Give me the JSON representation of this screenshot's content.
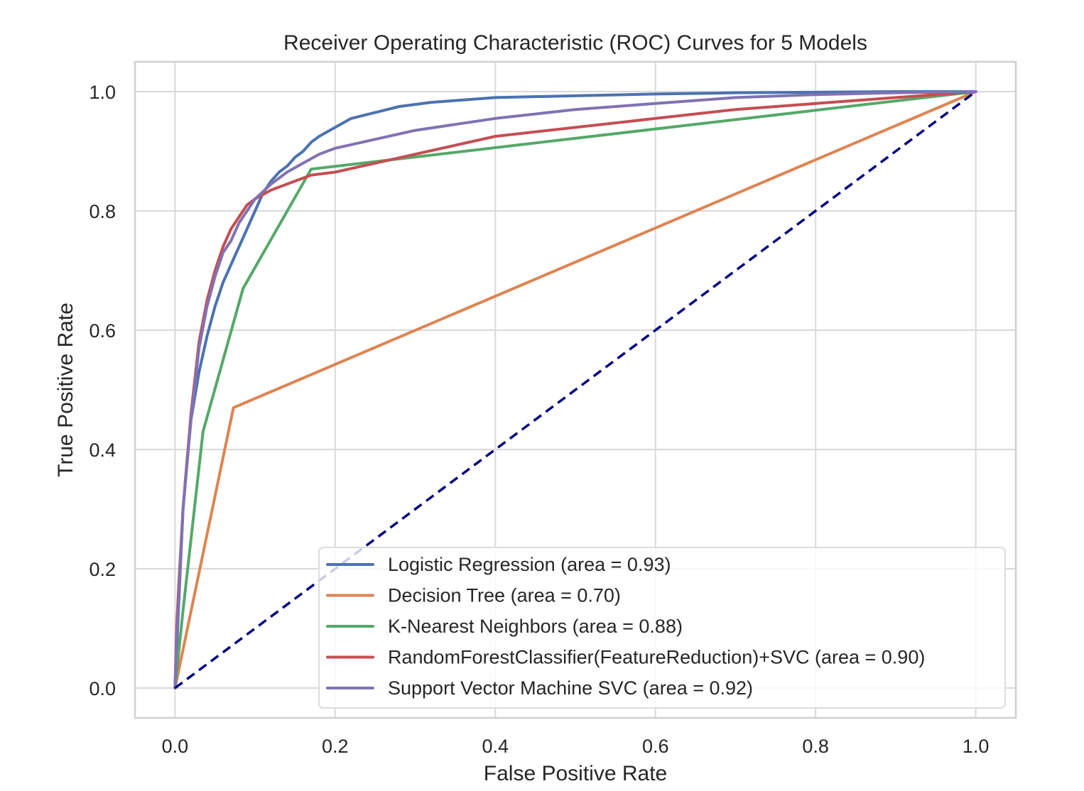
{
  "chart_data": {
    "type": "line",
    "title": "Receiver Operating Characteristic (ROC) Curves for 5 Models",
    "xlabel": "False Positive Rate",
    "ylabel": "True Positive Rate",
    "xlim": [
      -0.05,
      1.05
    ],
    "ylim": [
      -0.05,
      1.05
    ],
    "xticks": [
      0.0,
      0.2,
      0.4,
      0.6,
      0.8,
      1.0
    ],
    "yticks": [
      0.0,
      0.2,
      0.4,
      0.6,
      0.8,
      1.0
    ],
    "xtick_labels": [
      "0.0",
      "0.2",
      "0.4",
      "0.6",
      "0.8",
      "1.0"
    ],
    "ytick_labels": [
      "0.0",
      "0.2",
      "0.4",
      "0.6",
      "0.8",
      "1.0"
    ],
    "grid": true,
    "legend_position": "lower-right",
    "series": [
      {
        "name": "Logistic Regression (area = 0.93)",
        "color": "#4c72b0",
        "x": [
          0.0,
          0.002,
          0.005,
          0.01,
          0.015,
          0.02,
          0.03,
          0.04,
          0.05,
          0.06,
          0.07,
          0.08,
          0.09,
          0.1,
          0.11,
          0.12,
          0.13,
          0.14,
          0.15,
          0.16,
          0.17,
          0.18,
          0.2,
          0.22,
          0.25,
          0.28,
          0.32,
          0.36,
          0.4,
          0.5,
          0.6,
          0.7,
          0.8,
          0.9,
          1.0
        ],
        "y": [
          0.0,
          0.06,
          0.15,
          0.3,
          0.38,
          0.45,
          0.53,
          0.59,
          0.64,
          0.68,
          0.71,
          0.74,
          0.77,
          0.8,
          0.83,
          0.85,
          0.865,
          0.875,
          0.89,
          0.9,
          0.915,
          0.925,
          0.94,
          0.955,
          0.965,
          0.975,
          0.982,
          0.986,
          0.99,
          0.993,
          0.996,
          0.998,
          0.999,
          1.0,
          1.0
        ]
      },
      {
        "name": "Decision Tree (area = 0.70)",
        "color": "#dd8452",
        "x": [
          0.0,
          0.073,
          1.0
        ],
        "y": [
          0.0,
          0.47,
          1.0
        ]
      },
      {
        "name": "K-Nearest Neighbors (area = 0.88)",
        "color": "#55a868",
        "x": [
          0.0,
          0.01,
          0.035,
          0.085,
          0.17,
          1.0
        ],
        "y": [
          0.0,
          0.13,
          0.43,
          0.67,
          0.87,
          1.0
        ]
      },
      {
        "name": "RandomForestClassifier(FeatureReduction)+SVC (area = 0.90)",
        "color": "#c44e52",
        "x": [
          0.0,
          0.002,
          0.005,
          0.01,
          0.02,
          0.03,
          0.04,
          0.05,
          0.06,
          0.07,
          0.08,
          0.09,
          0.1,
          0.12,
          0.14,
          0.17,
          0.2,
          0.25,
          0.3,
          0.35,
          0.4,
          0.5,
          0.6,
          0.7,
          0.8,
          0.9,
          1.0
        ],
        "y": [
          0.0,
          0.1,
          0.18,
          0.3,
          0.46,
          0.58,
          0.65,
          0.7,
          0.74,
          0.77,
          0.79,
          0.81,
          0.82,
          0.835,
          0.845,
          0.86,
          0.865,
          0.88,
          0.895,
          0.91,
          0.925,
          0.94,
          0.955,
          0.97,
          0.98,
          0.99,
          1.0
        ]
      },
      {
        "name": "Support Vector Machine SVC (area = 0.92)",
        "color": "#8172b3",
        "x": [
          0.0,
          0.002,
          0.005,
          0.01,
          0.02,
          0.03,
          0.04,
          0.05,
          0.06,
          0.07,
          0.08,
          0.09,
          0.1,
          0.12,
          0.14,
          0.16,
          0.18,
          0.2,
          0.25,
          0.3,
          0.35,
          0.4,
          0.5,
          0.6,
          0.7,
          0.8,
          0.9,
          1.0
        ],
        "y": [
          0.0,
          0.08,
          0.16,
          0.3,
          0.45,
          0.57,
          0.64,
          0.69,
          0.73,
          0.75,
          0.78,
          0.8,
          0.82,
          0.845,
          0.865,
          0.88,
          0.895,
          0.905,
          0.92,
          0.935,
          0.945,
          0.955,
          0.97,
          0.98,
          0.99,
          0.995,
          0.998,
          1.0
        ]
      }
    ],
    "reference_line": {
      "x": [
        0.0,
        1.0
      ],
      "y": [
        0.0,
        1.0
      ],
      "color": "#000080",
      "style": "dashed"
    },
    "colors": {
      "background": "#ffffff",
      "grid": "#d9d9d9",
      "axes_edge": "#d0d0d0",
      "text": "#262626",
      "legend_edge": "#dcdcdc"
    }
  }
}
